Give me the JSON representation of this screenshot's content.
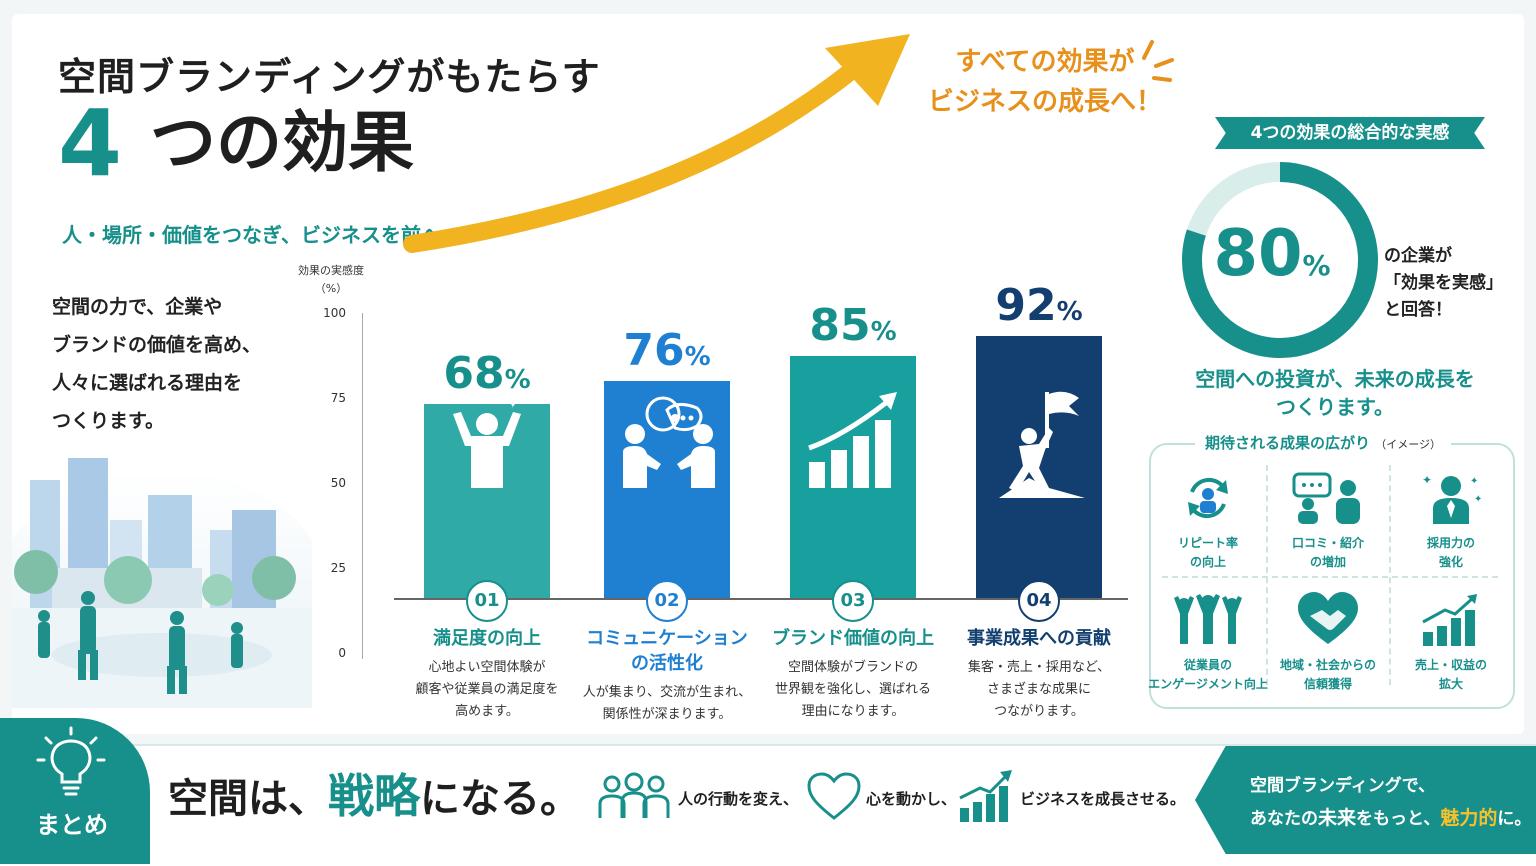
{
  "header": {
    "title_line1": "空間ブランディングがもたらす",
    "big_number": "4",
    "title_line2": "つの効果",
    "subtitle": "人・場所・価値をつなぎ、ビジネスを前へ。"
  },
  "intro_lines": [
    "空間の力で、企業や",
    "ブランドの価値を高め、",
    "人々に選ばれる理由を",
    "つくります。"
  ],
  "arrow_callout": [
    "すべての効果が",
    "ビジネスの成長へ！"
  ],
  "chart_data": {
    "type": "bar",
    "ylabel": "効果の実感度（%）",
    "ylabel_lines": [
      "効果の実感度",
      "（%）"
    ],
    "ylim": [
      0,
      100
    ],
    "yticks": [
      "100",
      "75",
      "50",
      "25",
      "0"
    ],
    "categories": [
      "満足度の向上",
      "コミュニケーションの活性化",
      "ブランド価値の向上",
      "事業成果への貢献"
    ],
    "values": [
      68,
      76,
      85,
      92
    ],
    "value_labels": [
      "68",
      "76",
      "85",
      "92"
    ],
    "percent_sign": "%",
    "numbers": [
      "01",
      "02",
      "03",
      "04"
    ],
    "colors": [
      "#30aaa6",
      "#1f7fd0",
      "#17a09d",
      "#133f70"
    ],
    "title_colors": [
      "#178f8b",
      "#1f7fd0",
      "#178f8b",
      "#133f70"
    ],
    "title_lines": [
      [
        "満足度の向上"
      ],
      [
        "コミュニケーション",
        "の活性化"
      ],
      [
        "ブランド価値の向上"
      ],
      [
        "事業成果への貢献"
      ]
    ],
    "desc_lines": [
      [
        "心地よい空間体験が",
        "顧客や従業員の満足度を",
        "高めます。"
      ],
      [
        "人が集まり、交流が生まれ、",
        "関係性が深まります。"
      ],
      [
        "空間体験がブランドの",
        "世界観を強化し、選ばれる",
        "理由になります。"
      ],
      [
        "集客・売上・採用など、",
        "さまざまな成果に",
        "つながります。"
      ]
    ],
    "icons": [
      "person-cheering-icon",
      "conversation-icon",
      "growth-chart-icon",
      "flag-summit-icon"
    ]
  },
  "side": {
    "ribbon": "4つの効果の総合的な実感",
    "ring_value": 80,
    "ring_number": "80",
    "ring_unit": "%",
    "ring_note_lines": [
      "の企業が",
      "「効果を実感」",
      "と回答！"
    ],
    "invest_lines": [
      "空間への投資が、未来の成長を",
      "つくります。"
    ],
    "expect_title": "期待される成果の広がり",
    "expect_note": "（イメージ）",
    "items": [
      {
        "icon": "repeat-customer-icon",
        "lines": [
          "リピート率",
          "の向上"
        ]
      },
      {
        "icon": "word-of-mouth-icon",
        "lines": [
          "口コミ・紹介",
          "の増加"
        ]
      },
      {
        "icon": "recruiting-icon",
        "lines": [
          "採用力の",
          "強化"
        ]
      },
      {
        "icon": "team-engagement-icon",
        "lines": [
          "従業員の",
          "エンゲージメント向上"
        ]
      },
      {
        "icon": "handshake-heart-icon",
        "lines": [
          "地域・社会からの",
          "信頼獲得"
        ]
      },
      {
        "icon": "sales-growth-icon",
        "lines": [
          "売上・収益の",
          "拡大"
        ]
      }
    ]
  },
  "footer": {
    "summary_label": "まとめ",
    "strategy_pre": "空間は、",
    "strategy_key": "戦略",
    "strategy_post": "になる。",
    "item1": "人の行動を変え、",
    "item2": "心を動かし、",
    "item3": "ビジネスを成長させる。",
    "cta_line1": "空間ブランディングで、",
    "cta_line2_a": "あなたの",
    "cta_line2_b": "未来",
    "cta_line2_c": "をもっと、",
    "cta_line2_d": "魅力的",
    "cta_line2_e": "に。"
  },
  "colors": {
    "teal": "#178f8b",
    "blue": "#1f7fd0",
    "navy": "#133f70",
    "arrow": "#f2b320",
    "orange": "#e8901c"
  }
}
